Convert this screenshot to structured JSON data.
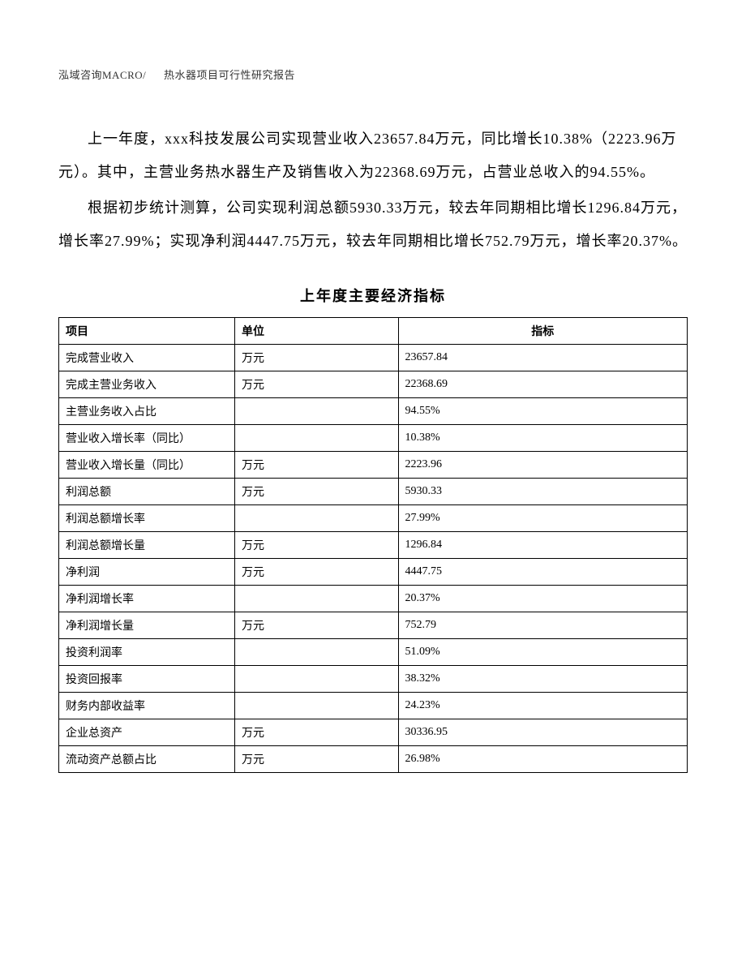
{
  "header": {
    "left": "泓域咨询MACRO/",
    "right": "热水器项目可行性研究报告"
  },
  "paragraphs": [
    "上一年度，xxx科技发展公司实现营业收入23657.84万元，同比增长10.38%（2223.96万元）。其中，主营业务热水器生产及销售收入为22368.69万元，占营业总收入的94.55%。",
    "根据初步统计测算，公司实现利润总额5930.33万元，较去年同期相比增长1296.84万元，增长率27.99%；实现净利润4447.75万元，较去年同期相比增长752.79万元，增长率20.37%。"
  ],
  "table": {
    "title": "上年度主要经济指标",
    "columns": [
      "项目",
      "单位",
      "指标"
    ],
    "rows": [
      [
        "完成营业收入",
        "万元",
        "23657.84"
      ],
      [
        "完成主营业务收入",
        "万元",
        "22368.69"
      ],
      [
        "主营业务收入占比",
        "",
        "94.55%"
      ],
      [
        "营业收入增长率（同比）",
        "",
        "10.38%"
      ],
      [
        "营业收入增长量（同比）",
        "万元",
        "2223.96"
      ],
      [
        "利润总额",
        "万元",
        "5930.33"
      ],
      [
        "利润总额增长率",
        "",
        "27.99%"
      ],
      [
        "利润总额增长量",
        "万元",
        "1296.84"
      ],
      [
        "净利润",
        "万元",
        "4447.75"
      ],
      [
        "净利润增长率",
        "",
        "20.37%"
      ],
      [
        "净利润增长量",
        "万元",
        "752.79"
      ],
      [
        "投资利润率",
        "",
        "51.09%"
      ],
      [
        "投资回报率",
        "",
        "38.32%"
      ],
      [
        "财务内部收益率",
        "",
        "24.23%"
      ],
      [
        "企业总资产",
        "万元",
        "30336.95"
      ],
      [
        "流动资产总额占比",
        "万元",
        "26.98%"
      ]
    ]
  }
}
